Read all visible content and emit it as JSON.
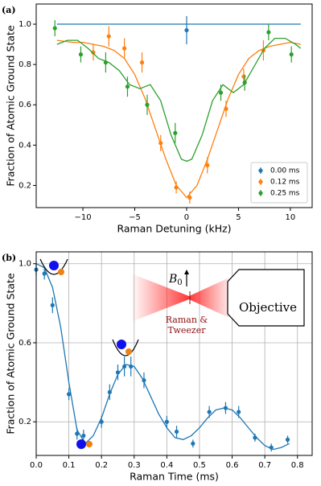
{
  "chart_data": [
    {
      "type": "scatter",
      "panel_label": "(a)",
      "x_label": "Raman Detuning (kHz)",
      "y_label": "Fraction of Atomic Ground State",
      "xlim": [
        -14.5,
        12.1
      ],
      "ylim": [
        0.09,
        1.1
      ],
      "grid": false,
      "legend": "lower right",
      "xticks": [
        {
          "value": -10,
          "label": "−10"
        },
        {
          "value": -5,
          "label": "−5"
        },
        0,
        5,
        10
      ],
      "yticks": [
        0.2,
        0.4,
        0.6,
        0.8,
        {
          "value": 1,
          "label": "1.0"
        }
      ],
      "series": [
        {
          "name": "0.00 ms",
          "color": "#1f77b4",
          "x": [
            0
          ],
          "values": [
            0.97
          ],
          "errors": [
            0.07
          ],
          "fit_x": [
            -12.5,
            11
          ],
          "fit_values": [
            1.0,
            1.0
          ]
        },
        {
          "name": "0.12 ms",
          "color": "#ff7f0e",
          "x": [
            -9.0,
            -7.5,
            -6.0,
            -4.3,
            -2.5,
            -1.0,
            0.3,
            2.0,
            3.8,
            5.5,
            7.4
          ],
          "values": [
            0.86,
            0.94,
            0.88,
            0.81,
            0.41,
            0.19,
            0.14,
            0.3,
            0.58,
            0.74,
            0.87
          ],
          "errors": [
            0.04,
            0.05,
            0.05,
            0.05,
            0.04,
            0.03,
            0.03,
            0.04,
            0.04,
            0.04,
            0.05
          ],
          "fit_x": [
            -12.5,
            -11,
            -10,
            -9,
            -8,
            -7,
            -6,
            -5,
            -4,
            -3,
            -2,
            -1,
            0,
            1,
            2,
            3,
            4,
            5,
            6,
            7,
            8,
            9,
            10,
            11
          ],
          "fit_values": [
            0.92,
            0.91,
            0.91,
            0.9,
            0.89,
            0.87,
            0.83,
            0.75,
            0.63,
            0.48,
            0.33,
            0.2,
            0.14,
            0.2,
            0.33,
            0.48,
            0.63,
            0.75,
            0.83,
            0.87,
            0.89,
            0.9,
            0.91,
            0.9
          ]
        },
        {
          "name": "0.25 ms",
          "color": "#2ca02c",
          "x": [
            -12.7,
            -10.2,
            -7.8,
            -5.7,
            -3.8,
            -1.1,
            3.3,
            5.6,
            7.9,
            10.1
          ],
          "values": [
            0.98,
            0.85,
            0.81,
            0.69,
            0.6,
            0.46,
            0.66,
            0.71,
            0.96,
            0.85
          ],
          "errors": [
            0.04,
            0.04,
            0.05,
            0.05,
            0.05,
            0.05,
            0.04,
            0.04,
            0.04,
            0.04
          ],
          "fit_x": [
            -12.5,
            -11.5,
            -10.5,
            -9.5,
            -8.5,
            -7.5,
            -6.5,
            -5.5,
            -4.5,
            -3.5,
            -2.5,
            -1.5,
            -0.5,
            0,
            0.5,
            1.5,
            2.5,
            3.5,
            4.5,
            5.5,
            6.5,
            7.5,
            8.5,
            9.5,
            10.5,
            11
          ],
          "fit_values": [
            0.9,
            0.92,
            0.92,
            0.88,
            0.83,
            0.81,
            0.77,
            0.7,
            0.68,
            0.7,
            0.62,
            0.45,
            0.33,
            0.32,
            0.33,
            0.45,
            0.62,
            0.7,
            0.66,
            0.7,
            0.79,
            0.88,
            0.93,
            0.93,
            0.9,
            0.88
          ]
        }
      ]
    },
    {
      "type": "scatter",
      "panel_label": "(b)",
      "x_label": "Raman Time (ms)",
      "y_label": "Fraction of Atomic Ground State",
      "xlim": [
        0,
        0.845
      ],
      "ylim": [
        0.03,
        1.06
      ],
      "grid": true,
      "xticks": [
        {
          "value": 0,
          "label": "0.0"
        },
        0.1,
        0.2,
        0.3,
        0.4,
        0.5,
        0.6,
        0.7,
        0.8
      ],
      "yticks": [
        0.2,
        0.6,
        {
          "value": 1,
          "label": "1.0"
        }
      ],
      "annotations": {
        "b_field": "B",
        "b_field_sub": "0",
        "beam": [
          "Raman &",
          "Tweezer"
        ],
        "objective": "Objective"
      },
      "series": [
        {
          "color": "#1f77b4",
          "x": [
            0.0,
            0.025,
            0.05,
            0.1,
            0.125,
            0.145,
            0.2,
            0.225,
            0.25,
            0.27,
            0.29,
            0.33,
            0.4,
            0.43,
            0.48,
            0.53,
            0.58,
            0.62,
            0.67,
            0.72,
            0.77
          ],
          "values": [
            0.97,
            0.95,
            0.79,
            0.34,
            0.14,
            0.13,
            0.2,
            0.35,
            0.45,
            0.48,
            0.48,
            0.41,
            0.2,
            0.15,
            0.09,
            0.25,
            0.27,
            0.25,
            0.12,
            0.07,
            0.11
          ],
          "errors": [
            0.03,
            0.03,
            0.04,
            0.03,
            0.03,
            0.03,
            0.03,
            0.04,
            0.04,
            0.05,
            0.05,
            0.04,
            0.03,
            0.03,
            0.02,
            0.03,
            0.03,
            0.03,
            0.02,
            0.02,
            0.02
          ],
          "fit_x": [
            0,
            0.025,
            0.05,
            0.075,
            0.1,
            0.125,
            0.15,
            0.175,
            0.2,
            0.225,
            0.25,
            0.275,
            0.3,
            0.325,
            0.35,
            0.375,
            0.4,
            0.425,
            0.45,
            0.475,
            0.5,
            0.525,
            0.55,
            0.575,
            0.6,
            0.625,
            0.65,
            0.675,
            0.7,
            0.725,
            0.75,
            0.775
          ],
          "fit_values": [
            1.0,
            0.98,
            0.88,
            0.68,
            0.4,
            0.16,
            0.09,
            0.13,
            0.22,
            0.34,
            0.44,
            0.49,
            0.48,
            0.42,
            0.33,
            0.24,
            0.17,
            0.12,
            0.11,
            0.13,
            0.17,
            0.22,
            0.26,
            0.27,
            0.26,
            0.22,
            0.17,
            0.12,
            0.08,
            0.06,
            0.07,
            0.09
          ]
        }
      ]
    }
  ]
}
